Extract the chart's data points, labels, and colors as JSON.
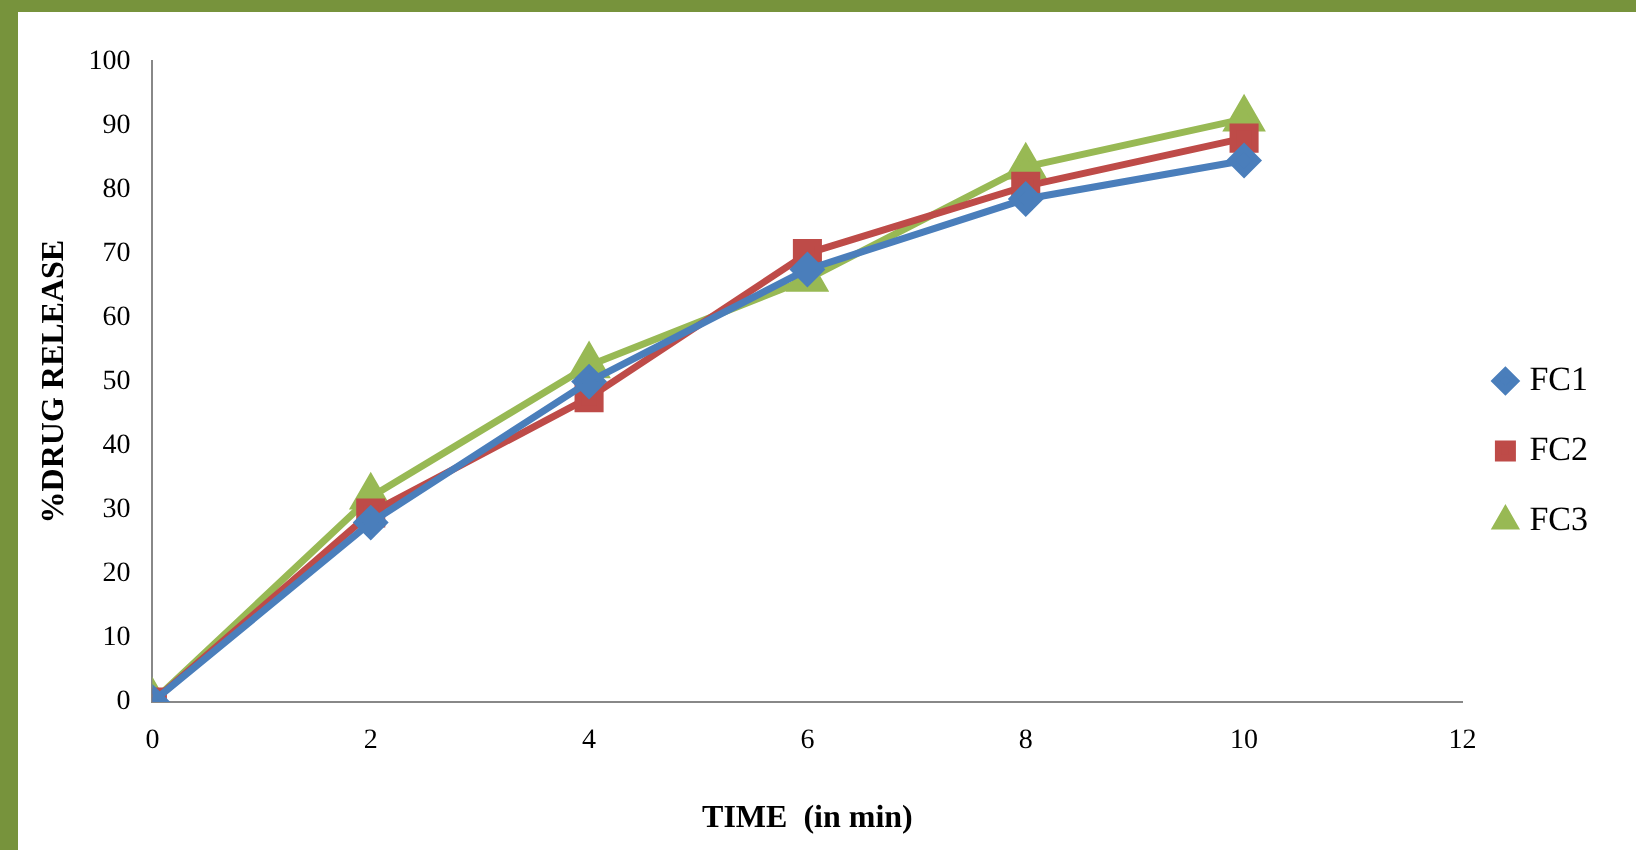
{
  "chart_data": {
    "type": "line",
    "xlabel": "TIME  (in min)",
    "ylabel": "%DRUG RELEASE",
    "x": [
      0,
      2,
      4,
      6,
      8,
      10
    ],
    "xlim": [
      0,
      12
    ],
    "xticks": [
      0,
      2,
      4,
      6,
      8,
      10,
      12
    ],
    "ylim": [
      0,
      100
    ],
    "yticks": [
      0,
      10,
      20,
      30,
      40,
      50,
      60,
      70,
      80,
      90,
      100
    ],
    "grid": false,
    "legend": "right",
    "line_style": "solid",
    "series": [
      {
        "name": "FC1",
        "color": "#4a7ebb",
        "marker": "diamond",
        "values": [
          0,
          28,
          50,
          67.5,
          78.5,
          84.5
        ]
      },
      {
        "name": "FC2",
        "color": "#be4b48",
        "marker": "square",
        "values": [
          0,
          29.5,
          47.5,
          70,
          80.5,
          88
        ]
      },
      {
        "name": "FC3",
        "color": "#98b954",
        "marker": "triangle",
        "values": [
          0,
          32,
          52.5,
          66,
          83.5,
          91
        ]
      }
    ]
  }
}
